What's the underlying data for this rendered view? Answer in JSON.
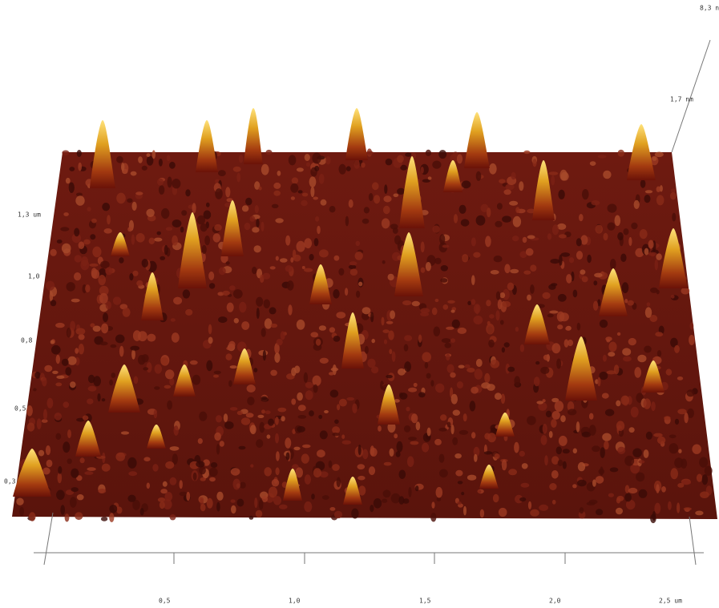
{
  "z_axis": {
    "labels": [
      "8,3 n",
      "1,7 nm"
    ]
  },
  "y_axis": {
    "labels": [
      "1,3 um",
      "1,0",
      "0,8",
      "0,5",
      "0,3"
    ]
  },
  "x_axis": {
    "labels": [
      "0,5",
      "1,0",
      "1,5",
      "2,0",
      "2,5 um"
    ]
  }
}
